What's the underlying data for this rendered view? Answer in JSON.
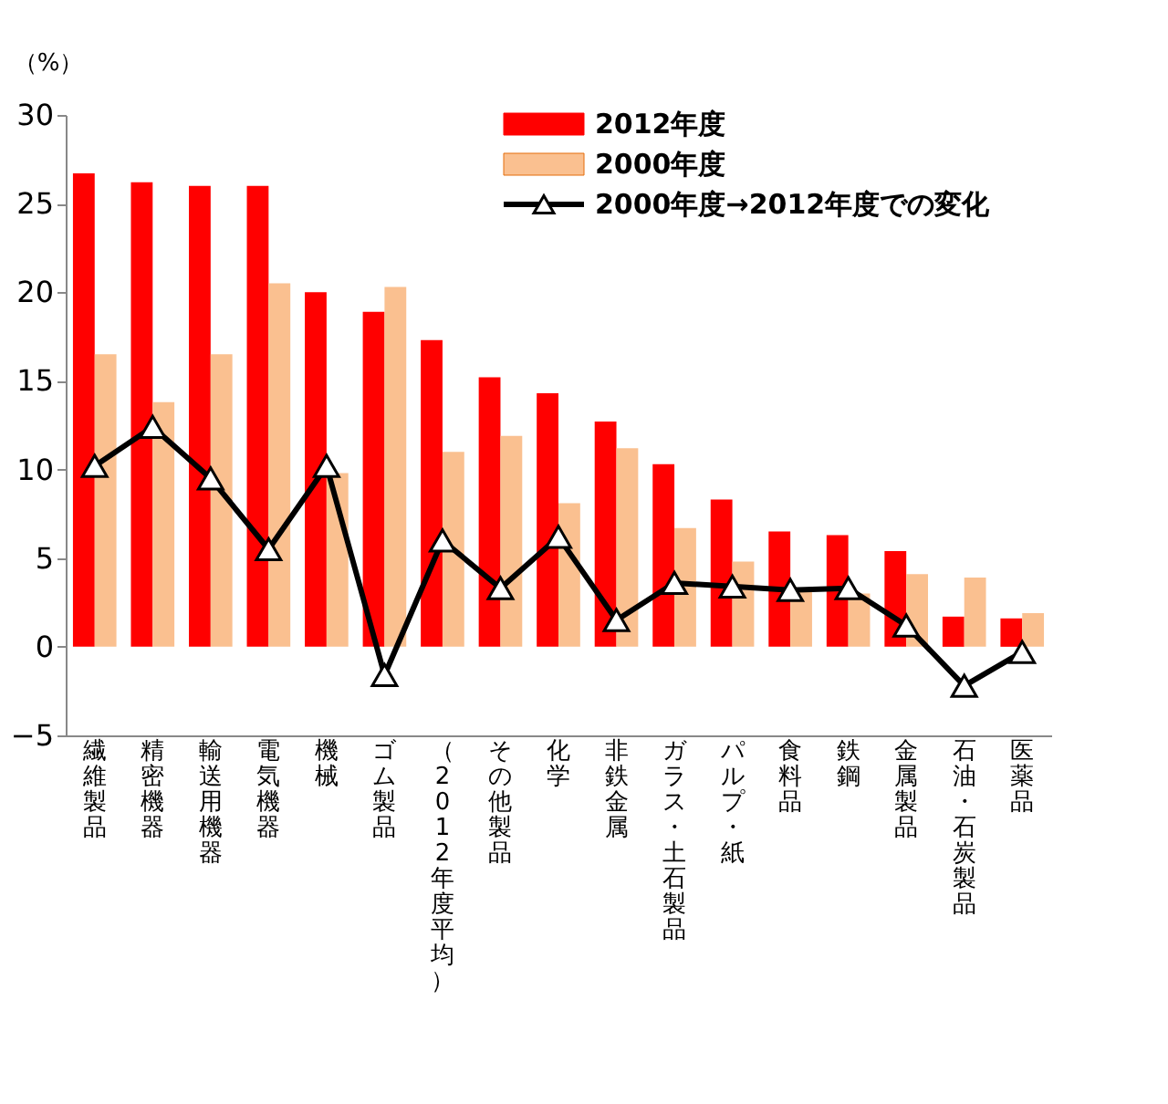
{
  "chart_data": {
    "type": "bar",
    "ylabel": "（%）",
    "categories": [
      "繊維製品",
      "精密機器",
      "輸送用機器",
      "電気機器",
      "機械",
      "ゴム製品",
      "（2012年度平均）",
      "その他製品",
      "化学",
      "非鉄金属",
      "ガラス・土石製品",
      "パルプ・紙",
      "食料品",
      "鉄鋼",
      "金属製品",
      "石油・石炭製品",
      "医薬品"
    ],
    "series": [
      {
        "name": "2012年度",
        "color": "#ff0000",
        "values": [
          26.7,
          26.2,
          26.0,
          26.0,
          20.0,
          18.9,
          17.3,
          15.2,
          14.3,
          12.7,
          10.3,
          8.3,
          6.5,
          6.3,
          5.4,
          1.7,
          1.6
        ]
      },
      {
        "name": "2000年度",
        "color": "#fac090",
        "values": [
          16.5,
          13.8,
          16.5,
          20.5,
          9.8,
          20.3,
          11.0,
          11.9,
          8.1,
          11.2,
          6.7,
          4.8,
          3.3,
          3.0,
          4.1,
          3.9,
          1.9
        ]
      },
      {
        "name": "2000年度→2012年度での変化",
        "color": "#000000",
        "type": "line",
        "marker": "triangle",
        "values": [
          10.2,
          12.4,
          9.5,
          5.5,
          10.2,
          -1.6,
          6.0,
          3.3,
          6.2,
          1.5,
          3.6,
          3.4,
          3.2,
          3.3,
          1.2,
          -2.2,
          -0.3
        ]
      }
    ],
    "ylim": [
      -5,
      30
    ],
    "yticks": [
      -5,
      0,
      5,
      10,
      15,
      20,
      25,
      30
    ],
    "grid": false,
    "legend": "top right"
  }
}
